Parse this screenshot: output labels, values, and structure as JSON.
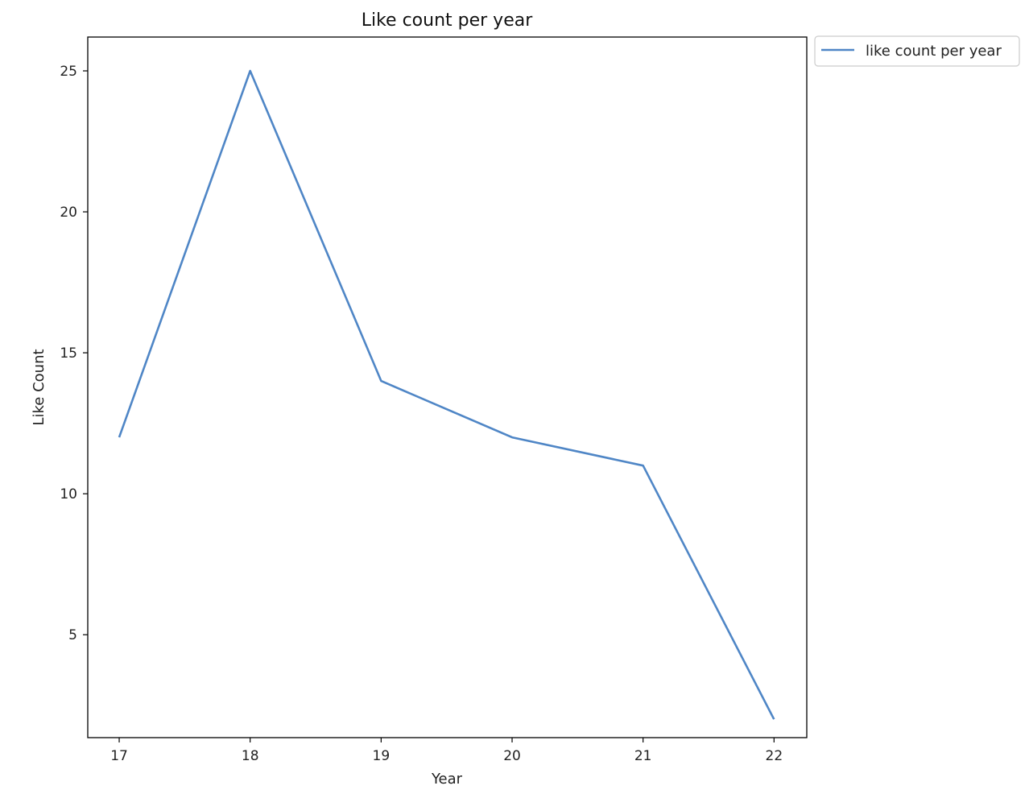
{
  "chart_data": {
    "type": "line",
    "title": "Like count per year",
    "xlabel": "Year",
    "ylabel": "Like Count",
    "x": [
      17,
      18,
      19,
      20,
      21,
      22
    ],
    "series": [
      {
        "name": "like count per year",
        "values": [
          12,
          25,
          14,
          12,
          11,
          2
        ],
        "color": "#4f86c6"
      }
    ],
    "xticks": [
      17,
      18,
      19,
      20,
      21,
      22
    ],
    "yticks": [
      5,
      10,
      15,
      20,
      25
    ],
    "xlim": [
      16.76,
      22.25
    ],
    "ylim": [
      1.35,
      26.2
    ],
    "grid": false,
    "legend_position": "outside-top-right"
  }
}
